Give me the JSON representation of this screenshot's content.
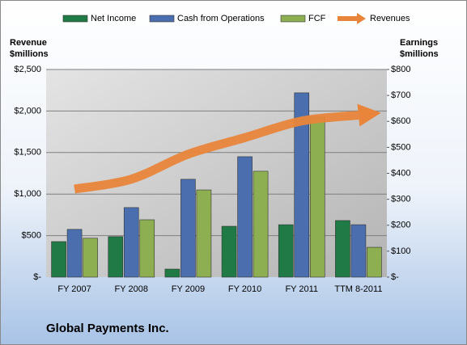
{
  "chart_data": {
    "type": "bar",
    "title": "Global Payments Inc.",
    "ylabel": "Revenue $millions",
    "y2label": "Earnings $millions",
    "categories": [
      "FY 2007",
      "FY 2008",
      "FY 2009",
      "FY 2010",
      "FY 2011",
      "TTM 8-2011"
    ],
    "series": [
      {
        "name": "Net Income",
        "color": "#1f7a45",
        "axis": "y2",
        "values": [
          137,
          156,
          31,
          196,
          202,
          218
        ]
      },
      {
        "name": "Cash from Operations",
        "color": "#4a6eae",
        "axis": "y2",
        "values": [
          184,
          268,
          377,
          464,
          710,
          202
        ]
      },
      {
        "name": "FCF",
        "color": "#8daf52",
        "axis": "y2",
        "values": [
          150,
          221,
          336,
          408,
          617,
          115
        ]
      },
      {
        "name": "Revenues",
        "color": "#e8853a",
        "type": "line",
        "values": [
          1060,
          1180,
          1480,
          1680,
          1880,
          1950
        ]
      }
    ],
    "ylim": [
      0,
      2500
    ],
    "yticks": [
      {
        "value": 0,
        "label": "$-"
      },
      {
        "value": 500,
        "label": "$500"
      },
      {
        "value": 1000,
        "label": "$1,000"
      },
      {
        "value": 1500,
        "label": "$1,500"
      },
      {
        "value": 2000,
        "label": "$2,000"
      },
      {
        "value": 2500,
        "label": "$2,500"
      }
    ],
    "y2lim": [
      0,
      800
    ],
    "y2ticks": [
      {
        "value": 0,
        "label": "$-"
      },
      {
        "value": 100,
        "label": "$100"
      },
      {
        "value": 200,
        "label": "$200"
      },
      {
        "value": 300,
        "label": "$300"
      },
      {
        "value": 400,
        "label": "$400"
      },
      {
        "value": 500,
        "label": "$500"
      },
      {
        "value": 600,
        "label": "$600"
      },
      {
        "value": 700,
        "label": "$700"
      },
      {
        "value": 800,
        "label": "$800"
      }
    ],
    "grid": true,
    "legend": "top"
  }
}
